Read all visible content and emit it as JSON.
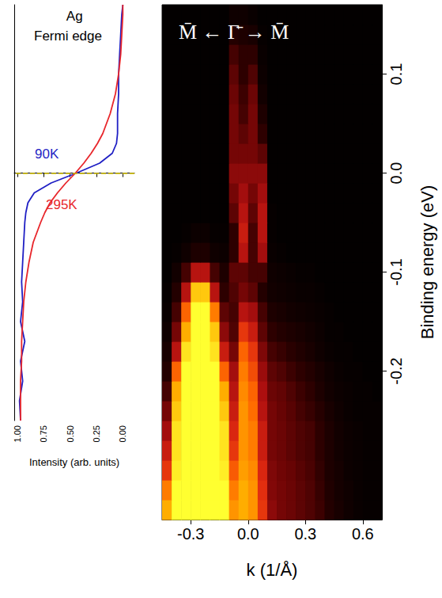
{
  "chart_data": [
    {
      "type": "line",
      "annotations": [
        "Ag",
        "Fermi edge"
      ],
      "xlabel": "Intensity (arb. units)",
      "xlim": [
        1.03,
        -0.11
      ],
      "xticks": [
        {
          "value": 1,
          "label": "1.00"
        },
        {
          "value": 0.75,
          "label": "0.75"
        },
        {
          "value": 0.5,
          "label": "0.50"
        },
        {
          "value": 0.25,
          "label": "0.25"
        },
        {
          "value": 0,
          "label": "0.00"
        }
      ],
      "ylim": [
        -0.25,
        0.17
      ],
      "tick_labels": "x",
      "reference_line": {
        "y": 0,
        "color": "#d8c400",
        "line_style": "dashed"
      },
      "series": [
        {
          "name": "90K",
          "color": "#1f1fc4",
          "x": [
            0.97,
            0.98,
            0.95,
            0.97,
            0.93,
            0.97,
            0.95,
            0.96,
            0.95,
            0.94,
            0.93,
            0.92,
            0.9,
            0.84,
            0.68,
            0.44,
            0.22,
            0.1,
            0.06,
            0.05,
            0.05,
            0.04,
            0.04,
            0.03,
            0.02,
            0.01,
            0.0
          ],
          "y": [
            -0.25,
            -0.23,
            -0.21,
            -0.19,
            -0.17,
            -0.15,
            -0.13,
            -0.11,
            -0.09,
            -0.07,
            -0.05,
            -0.04,
            -0.03,
            -0.02,
            -0.01,
            0,
            0.01,
            0.02,
            0.03,
            0.04,
            0.06,
            0.08,
            0.1,
            0.12,
            0.14,
            0.16,
            0.17
          ]
        },
        {
          "name": "295K",
          "color": "#e8262b",
          "x": [
            0.97,
            0.97,
            0.97,
            0.96,
            0.96,
            0.95,
            0.94,
            0.92,
            0.89,
            0.85,
            0.78,
            0.74,
            0.69,
            0.62,
            0.54,
            0.45,
            0.37,
            0.3,
            0.24,
            0.19,
            0.12,
            0.07,
            0.04,
            0.02,
            0.01,
            0.0,
            0.0
          ],
          "y": [
            -0.25,
            -0.23,
            -0.21,
            -0.19,
            -0.17,
            -0.15,
            -0.13,
            -0.11,
            -0.09,
            -0.07,
            -0.05,
            -0.04,
            -0.03,
            -0.02,
            -0.01,
            0,
            0.01,
            0.02,
            0.03,
            0.04,
            0.06,
            0.08,
            0.1,
            0.12,
            0.14,
            0.16,
            0.17
          ]
        }
      ]
    },
    {
      "type": "heatmap",
      "title": "M̄ ← Γ̄ → M̄",
      "xlabel": "k (1/Å)",
      "ylabel": "Binding energy (eV)",
      "xlim": [
        -0.45,
        0.7
      ],
      "xticks": [
        -0.3,
        {
          "value": 0,
          "label": "0.0"
        },
        0.3,
        0.6
      ],
      "ylim": [
        -0.35,
        0.17
      ],
      "yticks": [
        -0.2,
        -0.1,
        {
          "value": 0,
          "label": "0.0"
        },
        0.1
      ],
      "zlim": [
        0,
        1
      ],
      "x": [
        -0.425,
        -0.375,
        -0.325,
        -0.275,
        -0.225,
        -0.175,
        -0.125,
        -0.075,
        -0.025,
        0.025,
        0.075,
        0.125,
        0.175,
        0.225,
        0.275,
        0.325,
        0.375,
        0.425,
        0.475,
        0.525,
        0.575,
        0.625,
        0.675
      ],
      "y": [
        -0.34,
        -0.32,
        -0.3,
        -0.28,
        -0.26,
        -0.24,
        -0.22,
        -0.2,
        -0.18,
        -0.16,
        -0.14,
        -0.12,
        -0.1,
        -0.08,
        -0.06,
        -0.04,
        -0.02,
        0,
        0.02,
        0.04,
        0.06,
        0.08,
        0.1,
        0.12,
        0.14,
        0.16
      ],
      "values": [
        [
          0.85,
          1,
          1,
          1,
          1,
          1,
          1,
          0.8,
          0.85,
          0.8,
          0.6,
          0.35,
          0.3,
          0.28,
          0.25,
          0.22,
          0.18,
          0.12,
          0.08,
          0.05,
          0.03,
          0.02,
          0.02
        ],
        [
          0.75,
          1,
          1,
          1,
          1,
          1,
          1,
          0.75,
          0.85,
          0.8,
          0.58,
          0.33,
          0.3,
          0.28,
          0.25,
          0.22,
          0.17,
          0.11,
          0.07,
          0.05,
          0.03,
          0.02,
          0.02
        ],
        [
          0.6,
          0.97,
          1,
          1,
          1,
          1,
          0.97,
          0.68,
          0.82,
          0.78,
          0.55,
          0.32,
          0.29,
          0.27,
          0.24,
          0.21,
          0.16,
          0.1,
          0.07,
          0.04,
          0.03,
          0.02,
          0.02
        ],
        [
          0.5,
          0.95,
          1,
          1,
          1,
          1,
          0.95,
          0.6,
          0.8,
          0.75,
          0.5,
          0.3,
          0.28,
          0.25,
          0.22,
          0.2,
          0.15,
          0.1,
          0.06,
          0.04,
          0.03,
          0.02,
          0.02
        ],
        [
          0.4,
          0.95,
          1,
          1,
          1,
          1,
          0.95,
          0.55,
          0.8,
          0.75,
          0.5,
          0.3,
          0.28,
          0.25,
          0.22,
          0.2,
          0.15,
          0.1,
          0.06,
          0.04,
          0.03,
          0.02,
          0.02
        ],
        [
          0.3,
          0.9,
          1,
          1,
          1,
          1,
          0.9,
          0.5,
          0.8,
          0.72,
          0.45,
          0.3,
          0.27,
          0.24,
          0.2,
          0.17,
          0.13,
          0.08,
          0.05,
          0.03,
          0.02,
          0.02,
          0.02
        ],
        [
          0.2,
          0.85,
          1,
          1,
          1,
          1,
          0.85,
          0.45,
          0.78,
          0.7,
          0.42,
          0.28,
          0.26,
          0.22,
          0.18,
          0.15,
          0.1,
          0.06,
          0.04,
          0.03,
          0.02,
          0.02,
          0.01
        ],
        [
          0.12,
          0.7,
          1,
          1,
          1,
          1,
          0.7,
          0.4,
          0.75,
          0.65,
          0.38,
          0.25,
          0.22,
          0.18,
          0.15,
          0.12,
          0.08,
          0.05,
          0.03,
          0.02,
          0.02,
          0.01,
          0.01
        ],
        [
          0.08,
          0.45,
          0.95,
          1,
          1,
          0.95,
          0.5,
          0.3,
          0.7,
          0.6,
          0.32,
          0.2,
          0.17,
          0.14,
          0.11,
          0.08,
          0.05,
          0.03,
          0.02,
          0.02,
          0.01,
          0.01,
          0.01
        ],
        [
          0.05,
          0.3,
          0.85,
          1,
          1,
          0.9,
          0.35,
          0.22,
          0.6,
          0.5,
          0.25,
          0.15,
          0.12,
          0.1,
          0.08,
          0.06,
          0.04,
          0.02,
          0.02,
          0.01,
          0.01,
          0.01,
          0.01
        ],
        [
          0.03,
          0.2,
          0.7,
          1,
          1,
          0.75,
          0.25,
          0.2,
          0.45,
          0.4,
          0.2,
          0.1,
          0.08,
          0.06,
          0.05,
          0.04,
          0.03,
          0.02,
          0.01,
          0.01,
          0.01,
          0.01,
          0.01
        ],
        [
          0.02,
          0.12,
          0.45,
          0.9,
          0.9,
          0.45,
          0.15,
          0.22,
          0.3,
          0.25,
          0.12,
          0.06,
          0.05,
          0.04,
          0.03,
          0.03,
          0.02,
          0.01,
          0.01,
          0.01,
          0.01,
          0.01,
          0.01
        ],
        [
          0.01,
          0.06,
          0.2,
          0.45,
          0.45,
          0.2,
          0.1,
          0.25,
          0.25,
          0.2,
          0.2,
          0.05,
          0.04,
          0.03,
          0.02,
          0.02,
          0.01,
          0.01,
          0.01,
          0.01,
          0.01,
          0.01,
          0.01
        ],
        [
          0.01,
          0.02,
          0.05,
          0.1,
          0.1,
          0.05,
          0.04,
          0.15,
          0.45,
          0.2,
          0.4,
          0.03,
          0.02,
          0.01,
          0.01,
          0.01,
          0.01,
          0.01,
          0.01,
          0.01,
          0.01,
          0.01,
          0.01
        ],
        [
          0.01,
          0.01,
          0.02,
          0.04,
          0.04,
          0.02,
          0.02,
          0.15,
          0.5,
          0.2,
          0.45,
          0.02,
          0.01,
          0.01,
          0.01,
          0.01,
          0.01,
          0.01,
          0.01,
          0.01,
          0.01,
          0.01,
          0.01
        ],
        [
          0.01,
          0.01,
          0.01,
          0.01,
          0.01,
          0.01,
          0.01,
          0.25,
          0.45,
          0.25,
          0.45,
          0.02,
          0.01,
          0.01,
          0.01,
          0.01,
          0.01,
          0.01,
          0.01,
          0.01,
          0.01,
          0.01,
          0.01
        ],
        [
          0.01,
          0.01,
          0.01,
          0.01,
          0.01,
          0.01,
          0.01,
          0.3,
          0.4,
          0.3,
          0.4,
          0.01,
          0.01,
          0.01,
          0.01,
          0.01,
          0.01,
          0.01,
          0.01,
          0.01,
          0.01,
          0.01,
          0.01
        ],
        [
          0.01,
          0.01,
          0.01,
          0.01,
          0.01,
          0.01,
          0.01,
          0.35,
          0.35,
          0.35,
          0.35,
          0.01,
          0.01,
          0.01,
          0.01,
          0.01,
          0.01,
          0.01,
          0.01,
          0.01,
          0.01,
          0.01,
          0.01
        ],
        [
          0.01,
          0.01,
          0.01,
          0.01,
          0.01,
          0.01,
          0.01,
          0.3,
          0.3,
          0.3,
          0.25,
          0.01,
          0.01,
          0.01,
          0.01,
          0.01,
          0.01,
          0.01,
          0.01,
          0.01,
          0.01,
          0.01,
          0.01
        ],
        [
          0.01,
          0.01,
          0.01,
          0.01,
          0.01,
          0.01,
          0.01,
          0.3,
          0.25,
          0.3,
          0.15,
          0.01,
          0.01,
          0.01,
          0.01,
          0.01,
          0.01,
          0.01,
          0.01,
          0.01,
          0.01,
          0.01,
          0.01
        ],
        [
          0.01,
          0.01,
          0.01,
          0.01,
          0.01,
          0.01,
          0.01,
          0.3,
          0.2,
          0.3,
          0.1,
          0.01,
          0.01,
          0.01,
          0.01,
          0.01,
          0.01,
          0.01,
          0.01,
          0.01,
          0.01,
          0.01,
          0.01
        ],
        [
          0.01,
          0.01,
          0.01,
          0.01,
          0.01,
          0.01,
          0.01,
          0.28,
          0.18,
          0.28,
          0.06,
          0.01,
          0.01,
          0.01,
          0.01,
          0.01,
          0.01,
          0.01,
          0.01,
          0.01,
          0.01,
          0.01,
          0.01
        ],
        [
          0.01,
          0.01,
          0.01,
          0.01,
          0.01,
          0.01,
          0.01,
          0.25,
          0.15,
          0.22,
          0.04,
          0.01,
          0.01,
          0.01,
          0.01,
          0.01,
          0.01,
          0.01,
          0.01,
          0.01,
          0.01,
          0.01,
          0.01
        ],
        [
          0.01,
          0.01,
          0.01,
          0.01,
          0.01,
          0.01,
          0.01,
          0.2,
          0.15,
          0.15,
          0.03,
          0.01,
          0.01,
          0.01,
          0.01,
          0.01,
          0.01,
          0.01,
          0.01,
          0.01,
          0.01,
          0.01,
          0.01
        ],
        [
          0.01,
          0.01,
          0.01,
          0.01,
          0.01,
          0.01,
          0.01,
          0.12,
          0.1,
          0.08,
          0.02,
          0.01,
          0.01,
          0.01,
          0.01,
          0.01,
          0.01,
          0.01,
          0.01,
          0.01,
          0.01,
          0.01,
          0.01
        ],
        [
          0.01,
          0.01,
          0.01,
          0.01,
          0.01,
          0.01,
          0.01,
          0.05,
          0.05,
          0.03,
          0.01,
          0.01,
          0.01,
          0.01,
          0.01,
          0.01,
          0.01,
          0.01,
          0.01,
          0.01,
          0.01,
          0.01,
          0.01
        ]
      ]
    }
  ]
}
